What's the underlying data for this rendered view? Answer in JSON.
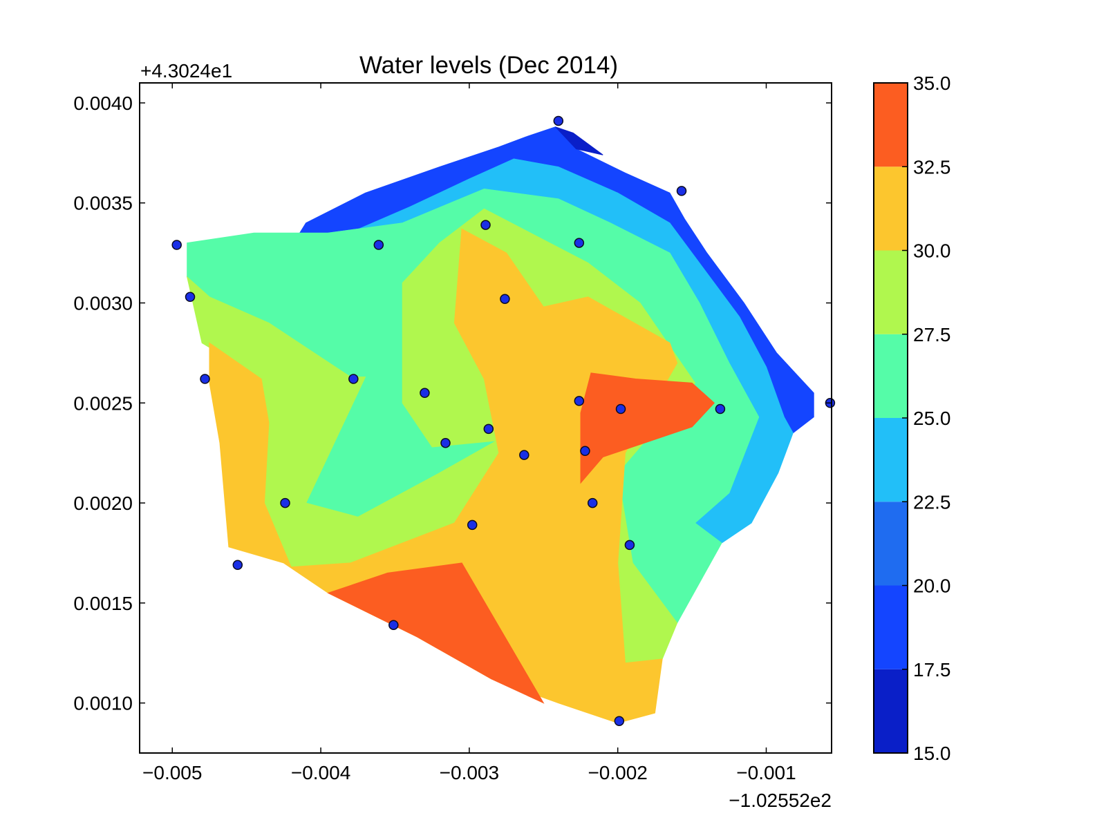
{
  "chart_data": {
    "type": "contour",
    "title": "Water levels (Dec 2014)",
    "xlabel": "",
    "ylabel": "",
    "x_offset_label": "−1.02552e2",
    "y_offset_label": "+4.3024e1",
    "xlim": [
      -0.00522,
      -0.00056
    ],
    "ylim": [
      0.00075,
      0.0041
    ],
    "x_ticks": [
      -0.005,
      -0.004,
      -0.003,
      -0.002,
      -0.001
    ],
    "x_tick_labels": [
      "−0.005",
      "−0.004",
      "−0.003",
      "−0.002",
      "−0.001"
    ],
    "y_ticks": [
      0.001,
      0.0015,
      0.002,
      0.0025,
      0.003,
      0.0035,
      0.004
    ],
    "y_tick_labels": [
      "0.0010",
      "0.0015",
      "0.0020",
      "0.0025",
      "0.0030",
      "0.0035",
      "0.0040"
    ],
    "colorbar": {
      "levels": [
        15.0,
        17.5,
        20.0,
        22.5,
        25.0,
        27.5,
        30.0,
        32.5,
        35.0
      ],
      "tick_labels": [
        "15.0",
        "17.5",
        "20.0",
        "22.5",
        "25.0",
        "27.5",
        "30.0",
        "32.5",
        "35.0"
      ],
      "colors": [
        "#0a1fc8",
        "#1445ff",
        "#1f6cf0",
        "#22bff8",
        "#55fca8",
        "#b0f74e",
        "#fcc62e",
        "#fc5d21",
        "#c40d18"
      ]
    },
    "regions": [
      {
        "name": "level-17.5-20.0",
        "band": 1,
        "points": [
          [
            -0.00242,
            0.00388
          ],
          [
            -0.00228,
            0.00377
          ],
          [
            -0.00195,
            0.00365
          ],
          [
            -0.00165,
            0.00355
          ],
          [
            -0.00155,
            0.00342
          ],
          [
            -0.0014,
            0.00325
          ],
          [
            -0.00115,
            0.003
          ],
          [
            -0.00093,
            0.00275
          ],
          [
            -0.00068,
            0.00255
          ],
          [
            -0.00068,
            0.00243
          ],
          [
            -0.00082,
            0.00235
          ],
          [
            -0.00088,
            0.00243
          ],
          [
            -0.001,
            0.00268
          ],
          [
            -0.00118,
            0.00293
          ],
          [
            -0.00145,
            0.0032
          ],
          [
            -0.00165,
            0.0034
          ],
          [
            -0.002,
            0.00355
          ],
          [
            -0.0024,
            0.00368
          ],
          [
            -0.0027,
            0.00372
          ],
          [
            -0.003,
            0.00362
          ],
          [
            -0.0034,
            0.00348
          ],
          [
            -0.0039,
            0.00332
          ],
          [
            -0.00425,
            0.00322
          ],
          [
            -0.0041,
            0.0034
          ],
          [
            -0.0037,
            0.00355
          ],
          [
            -0.0032,
            0.00368
          ],
          [
            -0.0028,
            0.00378
          ],
          [
            -0.00262,
            0.00383
          ]
        ]
      },
      {
        "name": "level-15.0-17.5",
        "band": 0,
        "points": [
          [
            -0.00242,
            0.00388
          ],
          [
            -0.0023,
            0.00385
          ],
          [
            -0.0021,
            0.00374
          ],
          [
            -0.00228,
            0.00377
          ]
        ]
      },
      {
        "name": "level-20.0-22.5",
        "band": 3,
        "points": [
          [
            -0.00425,
            0.00322
          ],
          [
            -0.0039,
            0.00332
          ],
          [
            -0.0034,
            0.00348
          ],
          [
            -0.003,
            0.00362
          ],
          [
            -0.0027,
            0.00372
          ],
          [
            -0.0024,
            0.00368
          ],
          [
            -0.002,
            0.00355
          ],
          [
            -0.00165,
            0.0034
          ],
          [
            -0.00145,
            0.0032
          ],
          [
            -0.00118,
            0.00293
          ],
          [
            -0.001,
            0.00268
          ],
          [
            -0.00088,
            0.00243
          ],
          [
            -0.00082,
            0.00235
          ],
          [
            -0.00092,
            0.00215
          ],
          [
            -0.0011,
            0.0019
          ],
          [
            -0.0013,
            0.0018
          ],
          [
            -0.00148,
            0.0019
          ],
          [
            -0.00125,
            0.00205
          ],
          [
            -0.00105,
            0.00243
          ],
          [
            -0.00125,
            0.0027
          ],
          [
            -0.00145,
            0.003
          ],
          [
            -0.00165,
            0.00325
          ],
          [
            -0.00205,
            0.0034
          ],
          [
            -0.0024,
            0.00352
          ],
          [
            -0.0029,
            0.00357
          ],
          [
            -0.00345,
            0.0034
          ],
          [
            -0.00395,
            0.00335
          ]
        ]
      },
      {
        "name": "level-22.5-25.0",
        "band": 4,
        "points": [
          [
            -0.0049,
            0.0033
          ],
          [
            -0.00445,
            0.00335
          ],
          [
            -0.00395,
            0.00335
          ],
          [
            -0.00345,
            0.0034
          ],
          [
            -0.0029,
            0.00357
          ],
          [
            -0.0024,
            0.00352
          ],
          [
            -0.00205,
            0.0034
          ],
          [
            -0.00165,
            0.00325
          ],
          [
            -0.00145,
            0.003
          ],
          [
            -0.00125,
            0.0027
          ],
          [
            -0.00105,
            0.00243
          ],
          [
            -0.00125,
            0.00205
          ],
          [
            -0.00148,
            0.0019
          ],
          [
            -0.0013,
            0.0018
          ],
          [
            -0.0016,
            0.0014
          ],
          [
            -0.0019,
            0.0017
          ],
          [
            -0.002,
            0.00215
          ],
          [
            -0.00148,
            0.0026
          ],
          [
            -0.00185,
            0.003
          ],
          [
            -0.0022,
            0.0032
          ],
          [
            -0.0029,
            0.00347
          ],
          [
            -0.0032,
            0.0033
          ],
          [
            -0.00345,
            0.0031
          ],
          [
            -0.00345,
            0.0025
          ],
          [
            -0.00325,
            0.00228
          ],
          [
            -0.0027,
            0.00232
          ],
          [
            -0.00283,
            0.0025
          ],
          [
            -0.0027,
            0.00236
          ],
          [
            -0.0032,
            0.00215
          ],
          [
            -0.00375,
            0.00193
          ],
          [
            -0.0041,
            0.002
          ],
          [
            -0.0037,
            0.00263
          ],
          [
            -0.0038,
            0.00263
          ],
          [
            -0.00435,
            0.0029
          ],
          [
            -0.00475,
            0.00303
          ],
          [
            -0.0049,
            0.00313
          ]
        ]
      },
      {
        "name": "level-25.0-27.5",
        "band": 5,
        "points": [
          [
            -0.0049,
            0.00313
          ],
          [
            -0.00475,
            0.00303
          ],
          [
            -0.00435,
            0.0029
          ],
          [
            -0.0038,
            0.00263
          ],
          [
            -0.0037,
            0.00263
          ],
          [
            -0.0041,
            0.002
          ],
          [
            -0.00375,
            0.00193
          ],
          [
            -0.0032,
            0.00215
          ],
          [
            -0.0027,
            0.00236
          ],
          [
            -0.00283,
            0.0025
          ],
          [
            -0.0027,
            0.00232
          ],
          [
            -0.00325,
            0.00228
          ],
          [
            -0.00345,
            0.0025
          ],
          [
            -0.00345,
            0.0031
          ],
          [
            -0.0032,
            0.0033
          ],
          [
            -0.0029,
            0.00347
          ],
          [
            -0.0022,
            0.0032
          ],
          [
            -0.00185,
            0.003
          ],
          [
            -0.00148,
            0.0026
          ],
          [
            -0.002,
            0.00215
          ],
          [
            -0.0019,
            0.0017
          ],
          [
            -0.0016,
            0.0014
          ],
          [
            -0.0017,
            0.00122
          ],
          [
            -0.00195,
            0.0012
          ],
          [
            -0.002,
            0.0017
          ],
          [
            -0.00195,
            0.00225
          ],
          [
            -0.0016,
            0.0027
          ],
          [
            -0.00165,
            0.0028
          ],
          [
            -0.0022,
            0.00303
          ],
          [
            -0.0025,
            0.00298
          ],
          [
            -0.00275,
            0.00325
          ],
          [
            -0.00305,
            0.00337
          ],
          [
            -0.0031,
            0.0029
          ],
          [
            -0.0029,
            0.00262
          ],
          [
            -0.0028,
            0.00225
          ],
          [
            -0.0031,
            0.0019
          ],
          [
            -0.0038,
            0.0017
          ],
          [
            -0.0042,
            0.00168
          ],
          [
            -0.00438,
            0.002
          ],
          [
            -0.00435,
            0.0024
          ],
          [
            -0.0044,
            0.00262
          ],
          [
            -0.0048,
            0.0028
          ]
        ]
      },
      {
        "name": "level-27.5-30.0",
        "band": 6,
        "points": [
          [
            -0.00475,
            0.0028
          ],
          [
            -0.0044,
            0.00262
          ],
          [
            -0.00435,
            0.0024
          ],
          [
            -0.00438,
            0.002
          ],
          [
            -0.0042,
            0.00168
          ],
          [
            -0.0038,
            0.0017
          ],
          [
            -0.0031,
            0.0019
          ],
          [
            -0.0028,
            0.00225
          ],
          [
            -0.0029,
            0.00262
          ],
          [
            -0.0031,
            0.0029
          ],
          [
            -0.00305,
            0.00337
          ],
          [
            -0.00275,
            0.00325
          ],
          [
            -0.0025,
            0.00298
          ],
          [
            -0.0022,
            0.00303
          ],
          [
            -0.00165,
            0.0028
          ],
          [
            -0.0016,
            0.0027
          ],
          [
            -0.00195,
            0.00225
          ],
          [
            -0.002,
            0.0017
          ],
          [
            -0.00195,
            0.0012
          ],
          [
            -0.0017,
            0.00122
          ],
          [
            -0.00175,
            0.00095
          ],
          [
            -0.002,
            0.0009
          ],
          [
            -0.0024,
            0.001
          ],
          [
            -0.00285,
            0.00112
          ],
          [
            -0.00335,
            0.00133
          ],
          [
            -0.00395,
            0.00155
          ],
          [
            -0.00425,
            0.0017
          ],
          [
            -0.00462,
            0.00178
          ],
          [
            -0.00468,
            0.0023
          ],
          [
            -0.00475,
            0.0026
          ]
        ]
      },
      {
        "name": "level-30.0-32.5-east",
        "band": 7,
        "points": [
          [
            -0.00218,
            0.00265
          ],
          [
            -0.00188,
            0.00262
          ],
          [
            -0.0015,
            0.0026
          ],
          [
            -0.00135,
            0.0025
          ],
          [
            -0.0015,
            0.00238
          ],
          [
            -0.0021,
            0.00223
          ],
          [
            -0.00225,
            0.0021
          ],
          [
            -0.00225,
            0.00245
          ]
        ]
      },
      {
        "name": "level-30.0-32.5-south",
        "band": 7,
        "points": [
          [
            -0.00395,
            0.00155
          ],
          [
            -0.00355,
            0.00165
          ],
          [
            -0.00305,
            0.0017
          ],
          [
            -0.0025,
            0.001
          ],
          [
            -0.00285,
            0.00112
          ],
          [
            -0.00335,
            0.00133
          ]
        ]
      }
    ],
    "points": [
      {
        "x": -0.00497,
        "y": 0.00329
      },
      {
        "x": -0.00488,
        "y": 0.00303
      },
      {
        "x": -0.00478,
        "y": 0.00262
      },
      {
        "x": -0.00456,
        "y": 0.00169
      },
      {
        "x": -0.00424,
        "y": 0.002
      },
      {
        "x": -0.00378,
        "y": 0.00262
      },
      {
        "x": -0.00361,
        "y": 0.00329
      },
      {
        "x": -0.00351,
        "y": 0.00139
      },
      {
        "x": -0.0033,
        "y": 0.00255
      },
      {
        "x": -0.00316,
        "y": 0.0023
      },
      {
        "x": -0.00298,
        "y": 0.00189
      },
      {
        "x": -0.00289,
        "y": 0.00339
      },
      {
        "x": -0.00287,
        "y": 0.00237
      },
      {
        "x": -0.00276,
        "y": 0.00302
      },
      {
        "x": -0.00263,
        "y": 0.00224
      },
      {
        "x": -0.0024,
        "y": 0.00391
      },
      {
        "x": -0.00226,
        "y": 0.0033
      },
      {
        "x": -0.00226,
        "y": 0.00251
      },
      {
        "x": -0.00222,
        "y": 0.00226
      },
      {
        "x": -0.00217,
        "y": 0.002
      },
      {
        "x": -0.00198,
        "y": 0.00247
      },
      {
        "x": -0.00199,
        "y": 0.00091
      },
      {
        "x": -0.00192,
        "y": 0.00179
      },
      {
        "x": -0.00157,
        "y": 0.00356
      },
      {
        "x": -0.00131,
        "y": 0.00247
      },
      {
        "x": -0.00057,
        "y": 0.0025
      }
    ]
  }
}
